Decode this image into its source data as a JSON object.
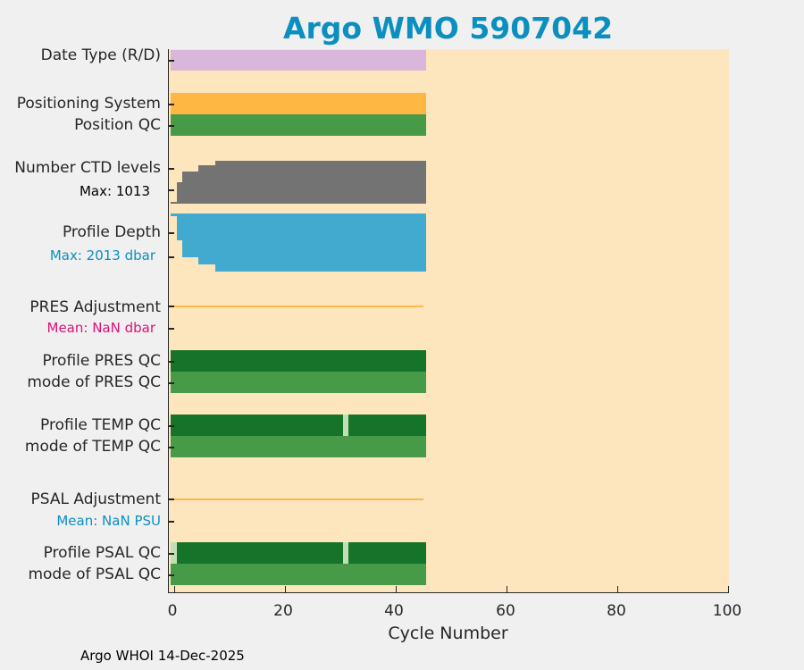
{
  "title": "Argo WMO 5907042",
  "footer": "Argo WHOI 14-Dec-2025",
  "chart_data": {
    "type": "bar",
    "title": "Argo WMO 5907042",
    "xlabel": "Cycle Number",
    "xlim": [
      -0.9,
      100
    ],
    "xticks": [
      "0",
      "20",
      "40",
      "60",
      "80",
      "100"
    ],
    "colors": {
      "date_type": "#d8b7da",
      "positioning": "#ffb743",
      "qc_good": "#479a47",
      "qc_dark": "#15742a",
      "qc_light": "#c0dfb5",
      "ctd": "#737373",
      "depth": "#43aacf",
      "adjust": "#ffb743"
    },
    "rows": {
      "date_type": {
        "label": "Date Type (R/D)",
        "cycles": [
          0,
          45
        ]
      },
      "positioning": {
        "label": "Positioning System",
        "cycles": [
          0,
          45
        ]
      },
      "position_qc": {
        "label": "Position QC",
        "cycles": [
          0,
          45
        ]
      },
      "ctd_levels": {
        "label": "Number CTD levels",
        "max_label": "Max: 1013",
        "max": 1013,
        "steps": [
          {
            "from": 0,
            "to": 0,
            "frac": 0.04
          },
          {
            "from": 1,
            "to": 1,
            "frac": 0.5
          },
          {
            "from": 2,
            "to": 4,
            "frac": 0.76
          },
          {
            "from": 5,
            "to": 7,
            "frac": 0.9
          },
          {
            "from": 8,
            "to": 45,
            "frac": 1.0
          }
        ]
      },
      "profile_depth": {
        "label": "Profile Depth",
        "max_label": "Max: 2013 dbar",
        "max": 2013,
        "steps": [
          {
            "from": 0,
            "to": 0,
            "frac": 0.04
          },
          {
            "from": 1,
            "to": 1,
            "frac": 0.46
          },
          {
            "from": 2,
            "to": 4,
            "frac": 0.75
          },
          {
            "from": 5,
            "to": 7,
            "frac": 0.88
          },
          {
            "from": 8,
            "to": 45,
            "frac": 1.0
          }
        ]
      },
      "pres_adj": {
        "label": "PRES Adjustment",
        "mean_label": "Mean:  NaN dbar",
        "cycles": [
          0,
          45
        ]
      },
      "pres_qc": {
        "label": "Profile PRES QC",
        "cycles": [
          0,
          45
        ],
        "light": []
      },
      "pres_mode": {
        "label": "mode of PRES QC",
        "cycles": [
          0,
          45
        ]
      },
      "temp_qc": {
        "label": "Profile TEMP QC",
        "cycles": [
          0,
          45
        ],
        "light": [
          31
        ]
      },
      "temp_mode": {
        "label": "mode of TEMP QC",
        "cycles": [
          0,
          45
        ]
      },
      "psal_adj": {
        "label": "PSAL Adjustment",
        "mean_label": "Mean:  NaN PSU",
        "cycles": [
          0,
          45
        ]
      },
      "psal_qc": {
        "label": "Profile PSAL QC",
        "cycles": [
          0,
          45
        ],
        "light": [
          0,
          31
        ]
      },
      "psal_mode": {
        "label": "mode of PSAL QC",
        "cycles": [
          0,
          45
        ]
      }
    }
  }
}
